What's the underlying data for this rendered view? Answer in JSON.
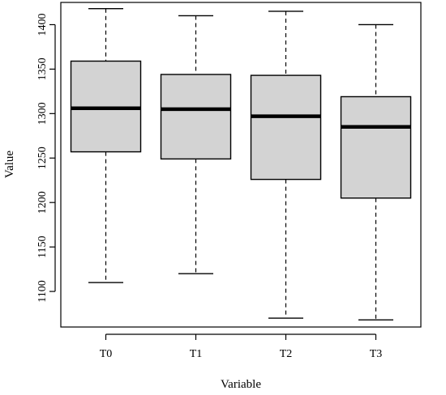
{
  "chart_data": {
    "type": "boxplot",
    "title": "",
    "xlabel": "Variable",
    "ylabel": "Value",
    "ylim": [
      1060,
      1425
    ],
    "yticks": [
      1100,
      1150,
      1200,
      1250,
      1300,
      1350,
      1400
    ],
    "categories": [
      "T0",
      "T1",
      "T2",
      "T3"
    ],
    "boxes": [
      {
        "category": "T0",
        "min": 1110,
        "q1": 1257,
        "median": 1306,
        "q3": 1359,
        "max": 1418
      },
      {
        "category": "T1",
        "min": 1120,
        "q1": 1249,
        "median": 1305,
        "q3": 1344,
        "max": 1410
      },
      {
        "category": "T2",
        "min": 1070,
        "q1": 1226,
        "median": 1297,
        "q3": 1343,
        "max": 1415
      },
      {
        "category": "T3",
        "min": 1068,
        "q1": 1205,
        "median": 1285,
        "q3": 1319,
        "max": 1400
      }
    ],
    "box_fill": "#d3d3d3",
    "grid": false,
    "legend": "none"
  }
}
